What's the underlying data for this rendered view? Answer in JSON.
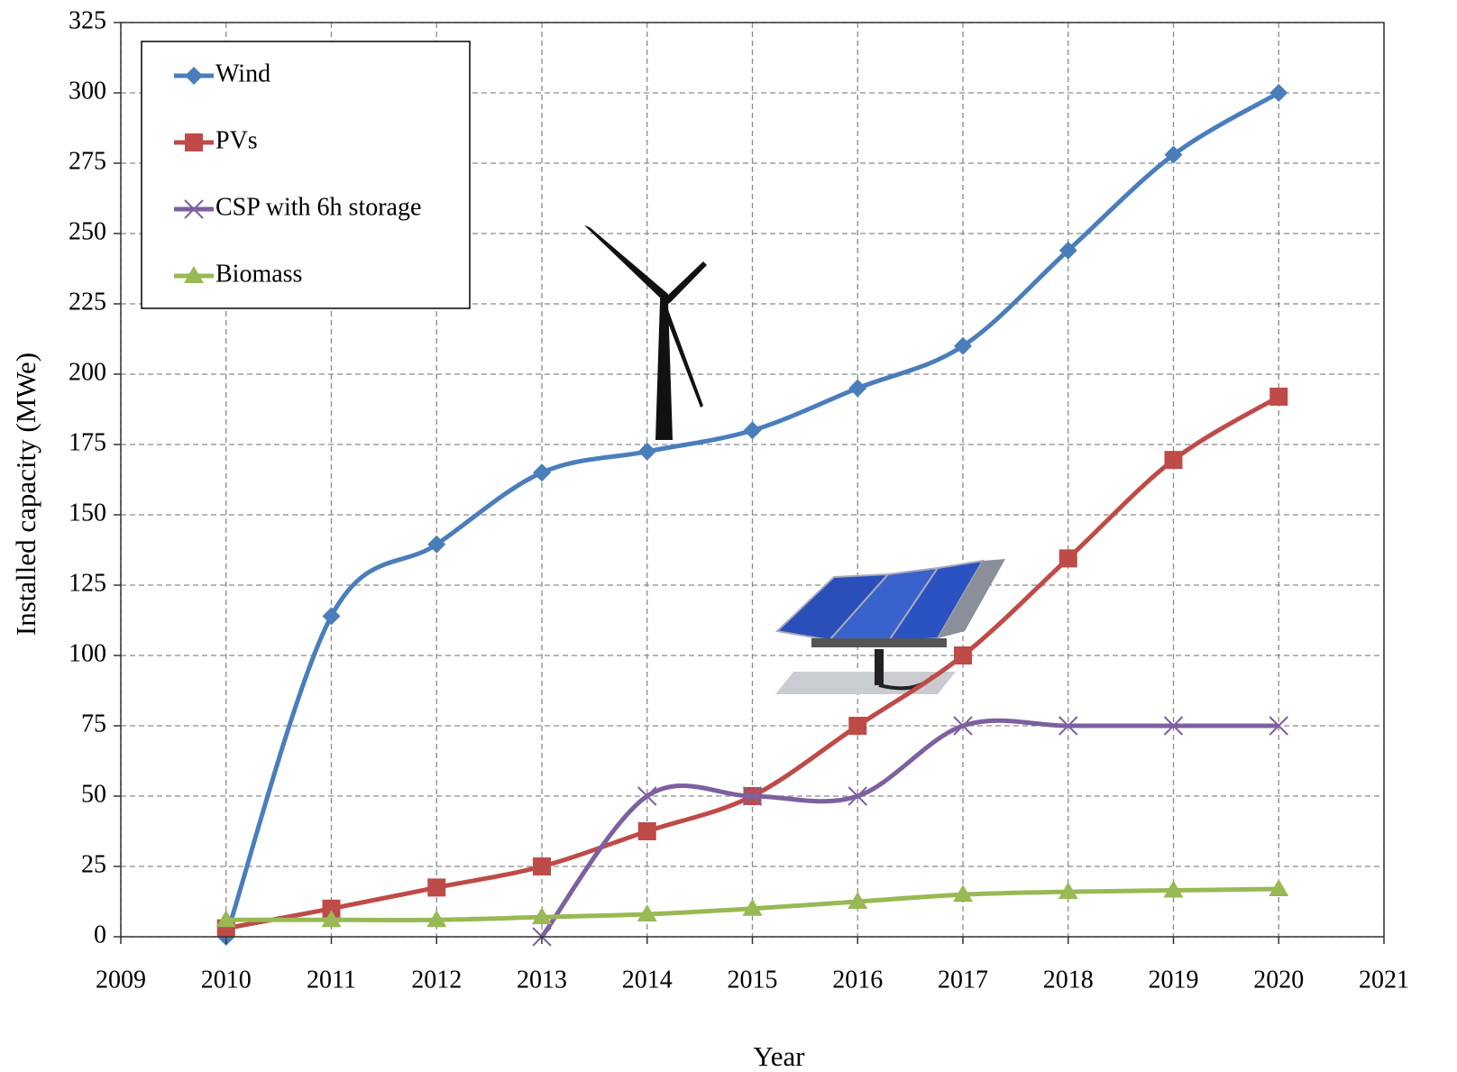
{
  "chart_data": {
    "type": "line",
    "x_label": "Year",
    "y_label": "Installed capacity (MWe)",
    "x": [
      2010,
      2011,
      2012,
      2013,
      2014,
      2015,
      2016,
      2017,
      2018,
      2019,
      2020
    ],
    "series": [
      {
        "name": "Wind",
        "color": "#4a7ebb",
        "marker": "diamond",
        "values": [
          0,
          114,
          139.5,
          165,
          172.5,
          180,
          195,
          210,
          244,
          278,
          300
        ]
      },
      {
        "name": "PVs",
        "color": "#be4b48",
        "marker": "square",
        "values": [
          3,
          10,
          17.5,
          25,
          37.5,
          50,
          75,
          100,
          134.5,
          169.5,
          192
        ]
      },
      {
        "name": "CSP with 6h storage",
        "color": "#7d60a0",
        "marker": "x",
        "values": [
          null,
          null,
          null,
          0,
          50,
          50,
          50,
          75,
          75,
          75,
          75
        ]
      },
      {
        "name": "Biomass",
        "color": "#98b954",
        "marker": "triangle",
        "values": [
          6,
          6,
          6,
          7,
          8,
          10,
          12.5,
          15,
          16,
          16.5,
          17
        ]
      }
    ],
    "xlim": [
      2009,
      2021
    ],
    "xticks": [
      2009,
      2010,
      2011,
      2012,
      2013,
      2014,
      2015,
      2016,
      2017,
      2018,
      2019,
      2020,
      2021
    ],
    "ylim": [
      0,
      325
    ],
    "yticks": [
      0,
      25,
      50,
      75,
      100,
      125,
      150,
      175,
      200,
      225,
      250,
      275,
      300,
      325
    ],
    "grid": true,
    "legend_position": "upper left",
    "smooth": true
  }
}
